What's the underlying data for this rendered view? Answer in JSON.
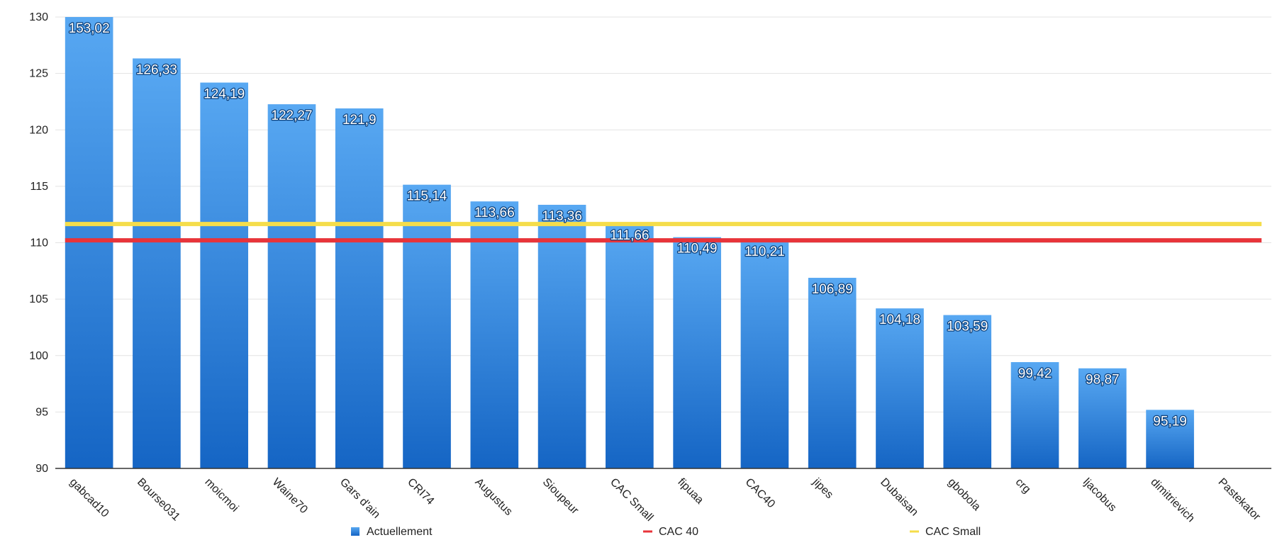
{
  "chart_data": {
    "type": "bar",
    "title": "",
    "xlabel": "",
    "ylabel": "",
    "ylim": [
      90,
      130
    ],
    "yticks": [
      90,
      95,
      100,
      105,
      110,
      115,
      120,
      125,
      130
    ],
    "grid": true,
    "legend_placement": "bottom",
    "categories": [
      "gabcad10",
      "Bourse031",
      "moicmoi",
      "Waine70",
      "Gars d'ain",
      "CRI74",
      "Augustus",
      "Sioupeur",
      "CAC Small",
      "fipuaa",
      "CAC40",
      "jipes",
      "Dubaisan",
      "gbobola",
      "crg",
      "ljacobus",
      "dimitrievich",
      "Pastekator"
    ],
    "series": [
      {
        "name": "Actuellement",
        "kind": "bar",
        "color": "#2f86e0",
        "values": [
          153.02,
          126.33,
          124.19,
          122.27,
          121.9,
          115.14,
          113.66,
          113.36,
          111.66,
          110.49,
          110.21,
          106.89,
          104.18,
          103.59,
          99.42,
          98.87,
          95.19,
          null
        ],
        "data_labels": [
          "153,02",
          "126,33",
          "124,19",
          "122,27",
          "121,9",
          "115,14",
          "113,66",
          "113,36",
          "111,66",
          "110,49",
          "110,21",
          "106,89",
          "104,18",
          "103,59",
          "99,42",
          "98,87",
          "95,19",
          ""
        ]
      },
      {
        "name": "CAC 40",
        "kind": "line",
        "color": "#e8343a",
        "value": 110.21
      },
      {
        "name": "CAC Small",
        "kind": "line",
        "color": "#f5dd4a",
        "value": 111.66
      }
    ]
  }
}
